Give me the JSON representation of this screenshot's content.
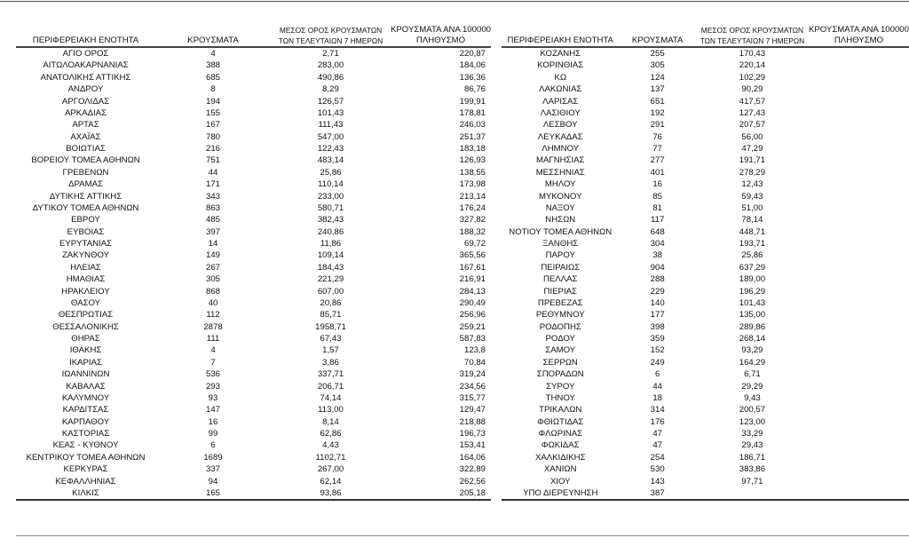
{
  "headers": {
    "region": "ΠΕΡΙΦΕΡΕΙΑΚΗ ΕΝΟΤΗΤΑ",
    "cases": "ΚΡΟΥΣΜΑΤΑ",
    "avg_line1": "ΜΕΣΟΣ ΟΡΟΣ ΚΡΟΥΣΜΑΤΩΝ",
    "avg_line2": "ΤΩΝ ΤΕΛΕΥΤΑΙΩΝ 7 ΗΜΕΡΩΝ",
    "per100k_line1": "ΚΡΟΥΣΜΑΤΑ ΑΝΑ 100000",
    "per100k_line2": "ΠΛΗΘΥΣΜΟ"
  },
  "left_rows": [
    [
      "ΑΓΙΟ ΟΡΟΣ",
      "4",
      "2,71",
      "220,87"
    ],
    [
      "ΑΙΤΩΛΟΑΚΑΡΝΑΝΙΑΣ",
      "388",
      "283,00",
      "184,06"
    ],
    [
      "ΑΝΑΤΟΛΙΚΗΣ ΑΤΤΙΚΗΣ",
      "685",
      "490,86",
      "136,36"
    ],
    [
      "ΑΝΔΡΟΥ",
      "8",
      "8,29",
      "86,76"
    ],
    [
      "ΑΡΓΟΛΙΔΑΣ",
      "194",
      "126,57",
      "199,91"
    ],
    [
      "ΑΡΚΑΔΙΑΣ",
      "155",
      "101,43",
      "178,81"
    ],
    [
      "ΑΡΤΑΣ",
      "167",
      "111,43",
      "246,03"
    ],
    [
      "ΑΧΑΪΑΣ",
      "780",
      "547,00",
      "251,37"
    ],
    [
      "ΒΟΙΩΤΙΑΣ",
      "216",
      "122,43",
      "183,18"
    ],
    [
      "ΒΟΡΕΙΟΥ ΤΟΜΕΑ ΑΘΗΝΩΝ",
      "751",
      "483,14",
      "126,93"
    ],
    [
      "ΓΡΕΒΕΝΩΝ",
      "44",
      "25,86",
      "138,55"
    ],
    [
      "ΔΡΑΜΑΣ",
      "171",
      "110,14",
      "173,98"
    ],
    [
      "ΔΥΤΙΚΗΣ ΑΤΤΙΚΗΣ",
      "343",
      "233,00",
      "213,14"
    ],
    [
      "ΔΥΤΙΚΟΥ ΤΟΜΕΑ ΑΘΗΝΩΝ",
      "863",
      "580,71",
      "176,24"
    ],
    [
      "ΕΒΡΟΥ",
      "485",
      "382,43",
      "327,82"
    ],
    [
      "ΕΥΒΟΙΑΣ",
      "397",
      "240,86",
      "188,32"
    ],
    [
      "ΕΥΡΥΤΑΝΙΑΣ",
      "14",
      "11,86",
      "69,72"
    ],
    [
      "ΖΑΚΥΝΘΟΥ",
      "149",
      "109,14",
      "365,56"
    ],
    [
      "ΗΛΕΙΑΣ",
      "267",
      "184,43",
      "167,61"
    ],
    [
      "ΗΜΑΘΙΑΣ",
      "305",
      "221,29",
      "216,91"
    ],
    [
      "ΗΡΑΚΛΕΙΟΥ",
      "868",
      "607,00",
      "284,13"
    ],
    [
      "ΘΑΣΟΥ",
      "40",
      "20,86",
      "290,49"
    ],
    [
      "ΘΕΣΠΡΩΤΙΑΣ",
      "112",
      "85,71",
      "256,96"
    ],
    [
      "ΘΕΣΣΑΛΟΝΙΚΗΣ",
      "2878",
      "1958,71",
      "259,21"
    ],
    [
      "ΘΗΡΑΣ",
      "111",
      "67,43",
      "587,83"
    ],
    [
      "ΙΘΑΚΗΣ",
      "4",
      "1,57",
      "123,8"
    ],
    [
      "ΙΚΑΡΙΑΣ",
      "7",
      "3,86",
      "70,84"
    ],
    [
      "ΙΩΑΝΝΙΝΩΝ",
      "536",
      "337,71",
      "319,24"
    ],
    [
      "ΚΑΒΑΛΑΣ",
      "293",
      "206,71",
      "234,56"
    ],
    [
      "ΚΑΛΥΜΝΟΥ",
      "93",
      "74,14",
      "315,77"
    ],
    [
      "ΚΑΡΔΙΤΣΑΣ",
      "147",
      "113,00",
      "129,47"
    ],
    [
      "ΚΑΡΠΑΘΟΥ",
      "16",
      "8,14",
      "218,88"
    ],
    [
      "ΚΑΣΤΟΡΙΑΣ",
      "99",
      "62,86",
      "196,73"
    ],
    [
      "ΚΕΑΣ - ΚΥΘΝΟΥ",
      "6",
      "4,43",
      "153,41"
    ],
    [
      "ΚΕΝΤΡΙΚΟΥ ΤΟΜΕΑ ΑΘΗΝΩΝ",
      "1689",
      "1102,71",
      "164,06"
    ],
    [
      "ΚΕΡΚΥΡΑΣ",
      "337",
      "267,00",
      "322,89"
    ],
    [
      "ΚΕΦΑΛΛΗΝΙΑΣ",
      "94",
      "62,14",
      "262,56"
    ],
    [
      "ΚΙΛΚΙΣ",
      "165",
      "93,86",
      "205,18"
    ]
  ],
  "right_rows": [
    [
      "ΚΟΖΑΝΗΣ",
      "255",
      "170,43"
    ],
    [
      "ΚΟΡΙΝΘΙΑΣ",
      "305",
      "220,14"
    ],
    [
      "ΚΩ",
      "124",
      "102,29"
    ],
    [
      "ΛΑΚΩΝΙΑΣ",
      "137",
      "90,29"
    ],
    [
      "ΛΑΡΙΣΑΣ",
      "651",
      "417,57"
    ],
    [
      "ΛΑΣΙΘΙΟΥ",
      "192",
      "127,43"
    ],
    [
      "ΛΕΣΒΟΥ",
      "291",
      "207,57"
    ],
    [
      "ΛΕΥΚΑΔΑΣ",
      "76",
      "56,00"
    ],
    [
      "ΛΗΜΝΟΥ",
      "77",
      "47,29"
    ],
    [
      "ΜΑΓΝΗΣΙΑΣ",
      "277",
      "191,71"
    ],
    [
      "ΜΕΣΣΗΝΙΑΣ",
      "401",
      "278,29"
    ],
    [
      "ΜΗΛΟΥ",
      "16",
      "12,43"
    ],
    [
      "ΜΥΚΟΝΟΥ",
      "85",
      "59,43"
    ],
    [
      "ΝΑΞΟΥ",
      "81",
      "51,00"
    ],
    [
      "ΝΗΣΩΝ",
      "117",
      "78,14"
    ],
    [
      "ΝΟΤΙΟΥ ΤΟΜΕΑ ΑΘΗΝΩΝ",
      "648",
      "448,71"
    ],
    [
      "ΞΑΝΘΗΣ",
      "304",
      "193,71"
    ],
    [
      "ΠΑΡΟΥ",
      "38",
      "25,86"
    ],
    [
      "ΠΕΙΡΑΙΩΣ",
      "904",
      "637,29"
    ],
    [
      "ΠΕΛΛΑΣ",
      "288",
      "189,00"
    ],
    [
      "ΠΙΕΡΙΑΣ",
      "229",
      "196,29"
    ],
    [
      "ΠΡΕΒΕΖΑΣ",
      "140",
      "101,43"
    ],
    [
      "ΡΕΘΥΜΝΟΥ",
      "177",
      "135,00"
    ],
    [
      "ΡΟΔΟΠΗΣ",
      "398",
      "289,86"
    ],
    [
      "ΡΟΔΟΥ",
      "359",
      "268,14"
    ],
    [
      "ΣΑΜΟΥ",
      "152",
      "93,29"
    ],
    [
      "ΣΕΡΡΩΝ",
      "249",
      "164,29"
    ],
    [
      "ΣΠΟΡΑΔΩΝ",
      "6",
      "6,71"
    ],
    [
      "ΣΥΡΟΥ",
      "44",
      "29,29"
    ],
    [
      "ΤΗΝΟΥ",
      "18",
      "9,43"
    ],
    [
      "ΤΡΙΚΑΛΩΝ",
      "314",
      "200,57"
    ],
    [
      "ΦΘΙΩΤΙΔΑΣ",
      "176",
      "123,00"
    ],
    [
      "ΦΛΩΡΙΝΑΣ",
      "47",
      "33,29"
    ],
    [
      "ΦΩΚΙΔΑΣ",
      "47",
      "29,43"
    ],
    [
      "ΧΑΛΚΙΔΙΚΗΣ",
      "254",
      "186,71"
    ],
    [
      "ΧΑΝΙΩΝ",
      "530",
      "383,86"
    ],
    [
      "ΧΙΟΥ",
      "143",
      "97,71"
    ],
    [
      "ΥΠΟ ΔΙΕΡΕΥΝΗΣΗ",
      "387",
      ""
    ]
  ]
}
